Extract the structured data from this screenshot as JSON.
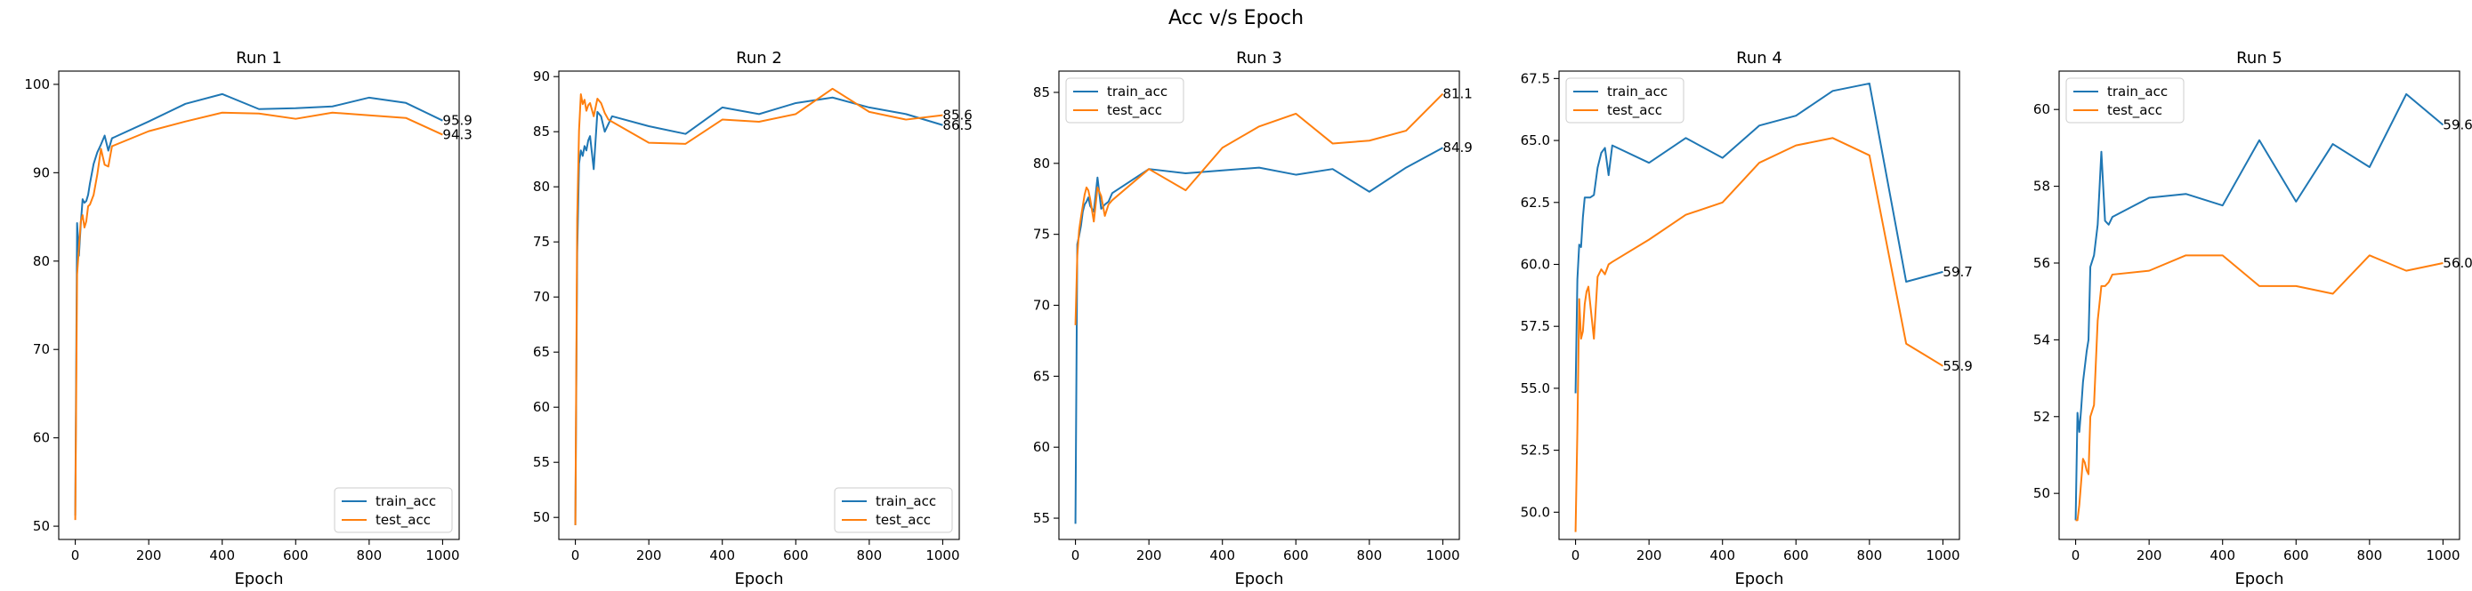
{
  "figure": {
    "suptitle": "Acc v/s Epoch"
  },
  "colors": {
    "train_acc": "#1f77b4",
    "test_acc": "#ff7f0e"
  },
  "chart_data": [
    {
      "type": "line",
      "title": "Run 1",
      "xlabel": "Epoch",
      "ylabel": "",
      "xlim": [
        -45,
        1045
      ],
      "ylim": [
        48.5,
        101.5
      ],
      "xticks": [
        0,
        200,
        400,
        600,
        800,
        1000
      ],
      "yticks": [
        50,
        60,
        70,
        80,
        90,
        100
      ],
      "legend": "lower right",
      "end_labels": [
        "95.9",
        "94.3"
      ],
      "series": [
        {
          "name": "train_acc",
          "x": [
            0,
            5,
            10,
            15,
            20,
            25,
            30,
            35,
            40,
            50,
            60,
            70,
            80,
            90,
            100,
            200,
            300,
            400,
            500,
            600,
            700,
            800,
            900,
            1000
          ],
          "y": [
            51.2,
            84.3,
            80.6,
            84.2,
            87.0,
            86.6,
            86.8,
            87.5,
            88.8,
            91.0,
            92.3,
            93.2,
            94.2,
            92.5,
            93.9,
            95.8,
            97.8,
            98.9,
            97.2,
            97.3,
            97.5,
            98.5,
            97.9,
            95.9
          ]
        },
        {
          "name": "test_acc",
          "x": [
            0,
            5,
            10,
            15,
            20,
            25,
            30,
            35,
            40,
            50,
            60,
            70,
            80,
            90,
            100,
            200,
            300,
            400,
            500,
            600,
            700,
            800,
            900,
            1000
          ],
          "y": [
            50.7,
            78.5,
            81.5,
            84.5,
            85.2,
            83.8,
            84.5,
            86.2,
            86.4,
            87.5,
            89.8,
            92.7,
            90.9,
            90.7,
            93.0,
            94.7,
            95.8,
            96.8,
            96.7,
            96.1,
            96.8,
            96.5,
            96.2,
            94.3
          ]
        }
      ]
    },
    {
      "type": "line",
      "title": "Run 2",
      "xlabel": "Epoch",
      "ylabel": "",
      "xlim": [
        -45,
        1045
      ],
      "ylim": [
        48.0,
        90.5
      ],
      "xticks": [
        0,
        200,
        400,
        600,
        800,
        1000
      ],
      "yticks": [
        50,
        55,
        60,
        65,
        70,
        75,
        80,
        85,
        90
      ],
      "legend": "lower right",
      "end_labels": [
        "86.5",
        "85.6"
      ],
      "series": [
        {
          "name": "train_acc",
          "x": [
            0,
            5,
            10,
            15,
            20,
            25,
            30,
            35,
            40,
            50,
            60,
            70,
            80,
            90,
            100,
            200,
            300,
            400,
            500,
            600,
            700,
            800,
            900,
            1000
          ],
          "y": [
            49.3,
            74.0,
            82.1,
            83.3,
            82.8,
            83.7,
            83.3,
            84.2,
            84.6,
            81.6,
            86.8,
            86.4,
            85.0,
            85.7,
            86.4,
            85.5,
            84.8,
            87.2,
            86.6,
            87.6,
            88.1,
            87.2,
            86.6,
            85.6
          ]
        },
        {
          "name": "test_acc",
          "x": [
            0,
            5,
            10,
            15,
            20,
            25,
            30,
            35,
            40,
            50,
            60,
            70,
            80,
            90,
            100,
            200,
            300,
            400,
            500,
            600,
            700,
            800,
            900,
            1000
          ],
          "y": [
            49.3,
            77.1,
            85.1,
            88.4,
            87.5,
            87.9,
            86.9,
            87.4,
            87.6,
            86.4,
            88.0,
            87.6,
            86.7,
            86.1,
            85.9,
            84.0,
            83.9,
            86.1,
            85.9,
            86.6,
            88.9,
            86.8,
            86.1,
            86.5
          ]
        }
      ]
    },
    {
      "type": "line",
      "title": "Run 3",
      "xlabel": "Epoch",
      "ylabel": "",
      "xlim": [
        -45,
        1045
      ],
      "ylim": [
        53.5,
        86.5
      ],
      "xticks": [
        0,
        200,
        400,
        600,
        800,
        1000
      ],
      "yticks": [
        55,
        60,
        65,
        70,
        75,
        80,
        85
      ],
      "legend": "upper left",
      "end_labels": [
        "84.9",
        "81.1"
      ],
      "series": [
        {
          "name": "train_acc",
          "x": [
            0,
            5,
            10,
            15,
            20,
            25,
            30,
            35,
            40,
            50,
            60,
            70,
            80,
            90,
            100,
            200,
            300,
            400,
            500,
            600,
            700,
            800,
            900,
            1000
          ],
          "y": [
            54.6,
            74.3,
            74.9,
            75.6,
            76.6,
            77.1,
            77.3,
            77.6,
            77.0,
            76.6,
            79.0,
            76.8,
            77.1,
            77.3,
            77.9,
            79.6,
            79.3,
            79.5,
            79.7,
            79.2,
            79.6,
            78.0,
            79.7,
            81.1
          ]
        },
        {
          "name": "test_acc",
          "x": [
            0,
            5,
            10,
            15,
            20,
            25,
            30,
            35,
            40,
            50,
            60,
            70,
            80,
            90,
            100,
            200,
            300,
            400,
            500,
            600,
            700,
            800,
            900,
            1000
          ],
          "y": [
            68.6,
            73.5,
            75.3,
            76.2,
            77.0,
            77.8,
            78.3,
            78.1,
            77.5,
            75.9,
            78.3,
            77.7,
            76.3,
            77.1,
            77.4,
            79.6,
            78.1,
            81.1,
            82.6,
            83.5,
            81.4,
            81.6,
            82.3,
            84.9
          ]
        }
      ]
    },
    {
      "type": "line",
      "title": "Run 4",
      "xlabel": "Epoch",
      "ylabel": "",
      "xlim": [
        -45,
        1045
      ],
      "ylim": [
        48.9,
        67.8
      ],
      "xticks": [
        0,
        200,
        400,
        600,
        800,
        1000
      ],
      "yticks": [
        50.0,
        52.5,
        55.0,
        57.5,
        60.0,
        62.5,
        65.0,
        67.5
      ],
      "ytick_labels": [
        "50.0",
        "52.5",
        "55.0",
        "57.5",
        "60.0",
        "62.5",
        "65.0",
        "67.5"
      ],
      "legend": "upper left",
      "end_labels": [
        "59.7",
        "55.9"
      ],
      "series": [
        {
          "name": "train_acc",
          "x": [
            0,
            5,
            10,
            15,
            20,
            25,
            30,
            35,
            40,
            50,
            60,
            70,
            80,
            90,
            100,
            200,
            300,
            400,
            500,
            600,
            700,
            800,
            900,
            1000
          ],
          "y": [
            54.8,
            59.4,
            60.8,
            60.7,
            61.9,
            62.7,
            62.7,
            62.7,
            62.7,
            62.8,
            63.9,
            64.5,
            64.7,
            63.6,
            64.8,
            64.1,
            65.1,
            64.3,
            65.6,
            66.0,
            67.0,
            67.3,
            59.3,
            59.7
          ]
        },
        {
          "name": "test_acc",
          "x": [
            0,
            5,
            10,
            15,
            20,
            25,
            30,
            35,
            40,
            50,
            60,
            70,
            80,
            90,
            100,
            200,
            300,
            400,
            500,
            600,
            700,
            800,
            900,
            1000
          ],
          "y": [
            49.2,
            53.3,
            58.6,
            57.0,
            57.3,
            58.4,
            58.9,
            59.1,
            58.4,
            57.0,
            59.5,
            59.8,
            59.6,
            60.0,
            60.1,
            61.0,
            62.0,
            62.5,
            64.1,
            64.8,
            65.1,
            64.4,
            56.8,
            55.9
          ]
        }
      ]
    },
    {
      "type": "line",
      "title": "Run 5",
      "xlabel": "Epoch",
      "ylabel": "",
      "xlim": [
        -45,
        1045
      ],
      "ylim": [
        48.8,
        61.0
      ],
      "xticks": [
        0,
        200,
        400,
        600,
        800,
        1000
      ],
      "yticks": [
        50,
        52,
        54,
        56,
        58,
        60
      ],
      "legend": "upper left",
      "end_labels": [
        "59.6",
        "56.0"
      ],
      "series": [
        {
          "name": "train_acc",
          "x": [
            0,
            5,
            10,
            15,
            20,
            25,
            30,
            35,
            40,
            50,
            60,
            70,
            80,
            90,
            100,
            200,
            300,
            400,
            500,
            600,
            700,
            800,
            900,
            1000
          ],
          "y": [
            49.3,
            52.1,
            51.6,
            52.2,
            52.9,
            53.3,
            53.7,
            54.0,
            55.9,
            56.2,
            57.0,
            58.9,
            57.1,
            57.0,
            57.2,
            57.7,
            57.8,
            57.5,
            59.2,
            57.6,
            59.1,
            58.5,
            60.4,
            59.6
          ]
        },
        {
          "name": "test_acc",
          "x": [
            0,
            5,
            10,
            15,
            20,
            25,
            30,
            35,
            40,
            50,
            60,
            70,
            80,
            90,
            100,
            200,
            300,
            400,
            500,
            600,
            700,
            800,
            900,
            1000
          ],
          "y": [
            49.3,
            49.3,
            49.7,
            50.3,
            50.9,
            50.8,
            50.6,
            50.5,
            52.0,
            52.3,
            54.5,
            55.4,
            55.4,
            55.5,
            55.7,
            55.8,
            56.2,
            56.2,
            55.4,
            55.4,
            55.2,
            56.2,
            55.8,
            56.0
          ]
        }
      ]
    }
  ]
}
